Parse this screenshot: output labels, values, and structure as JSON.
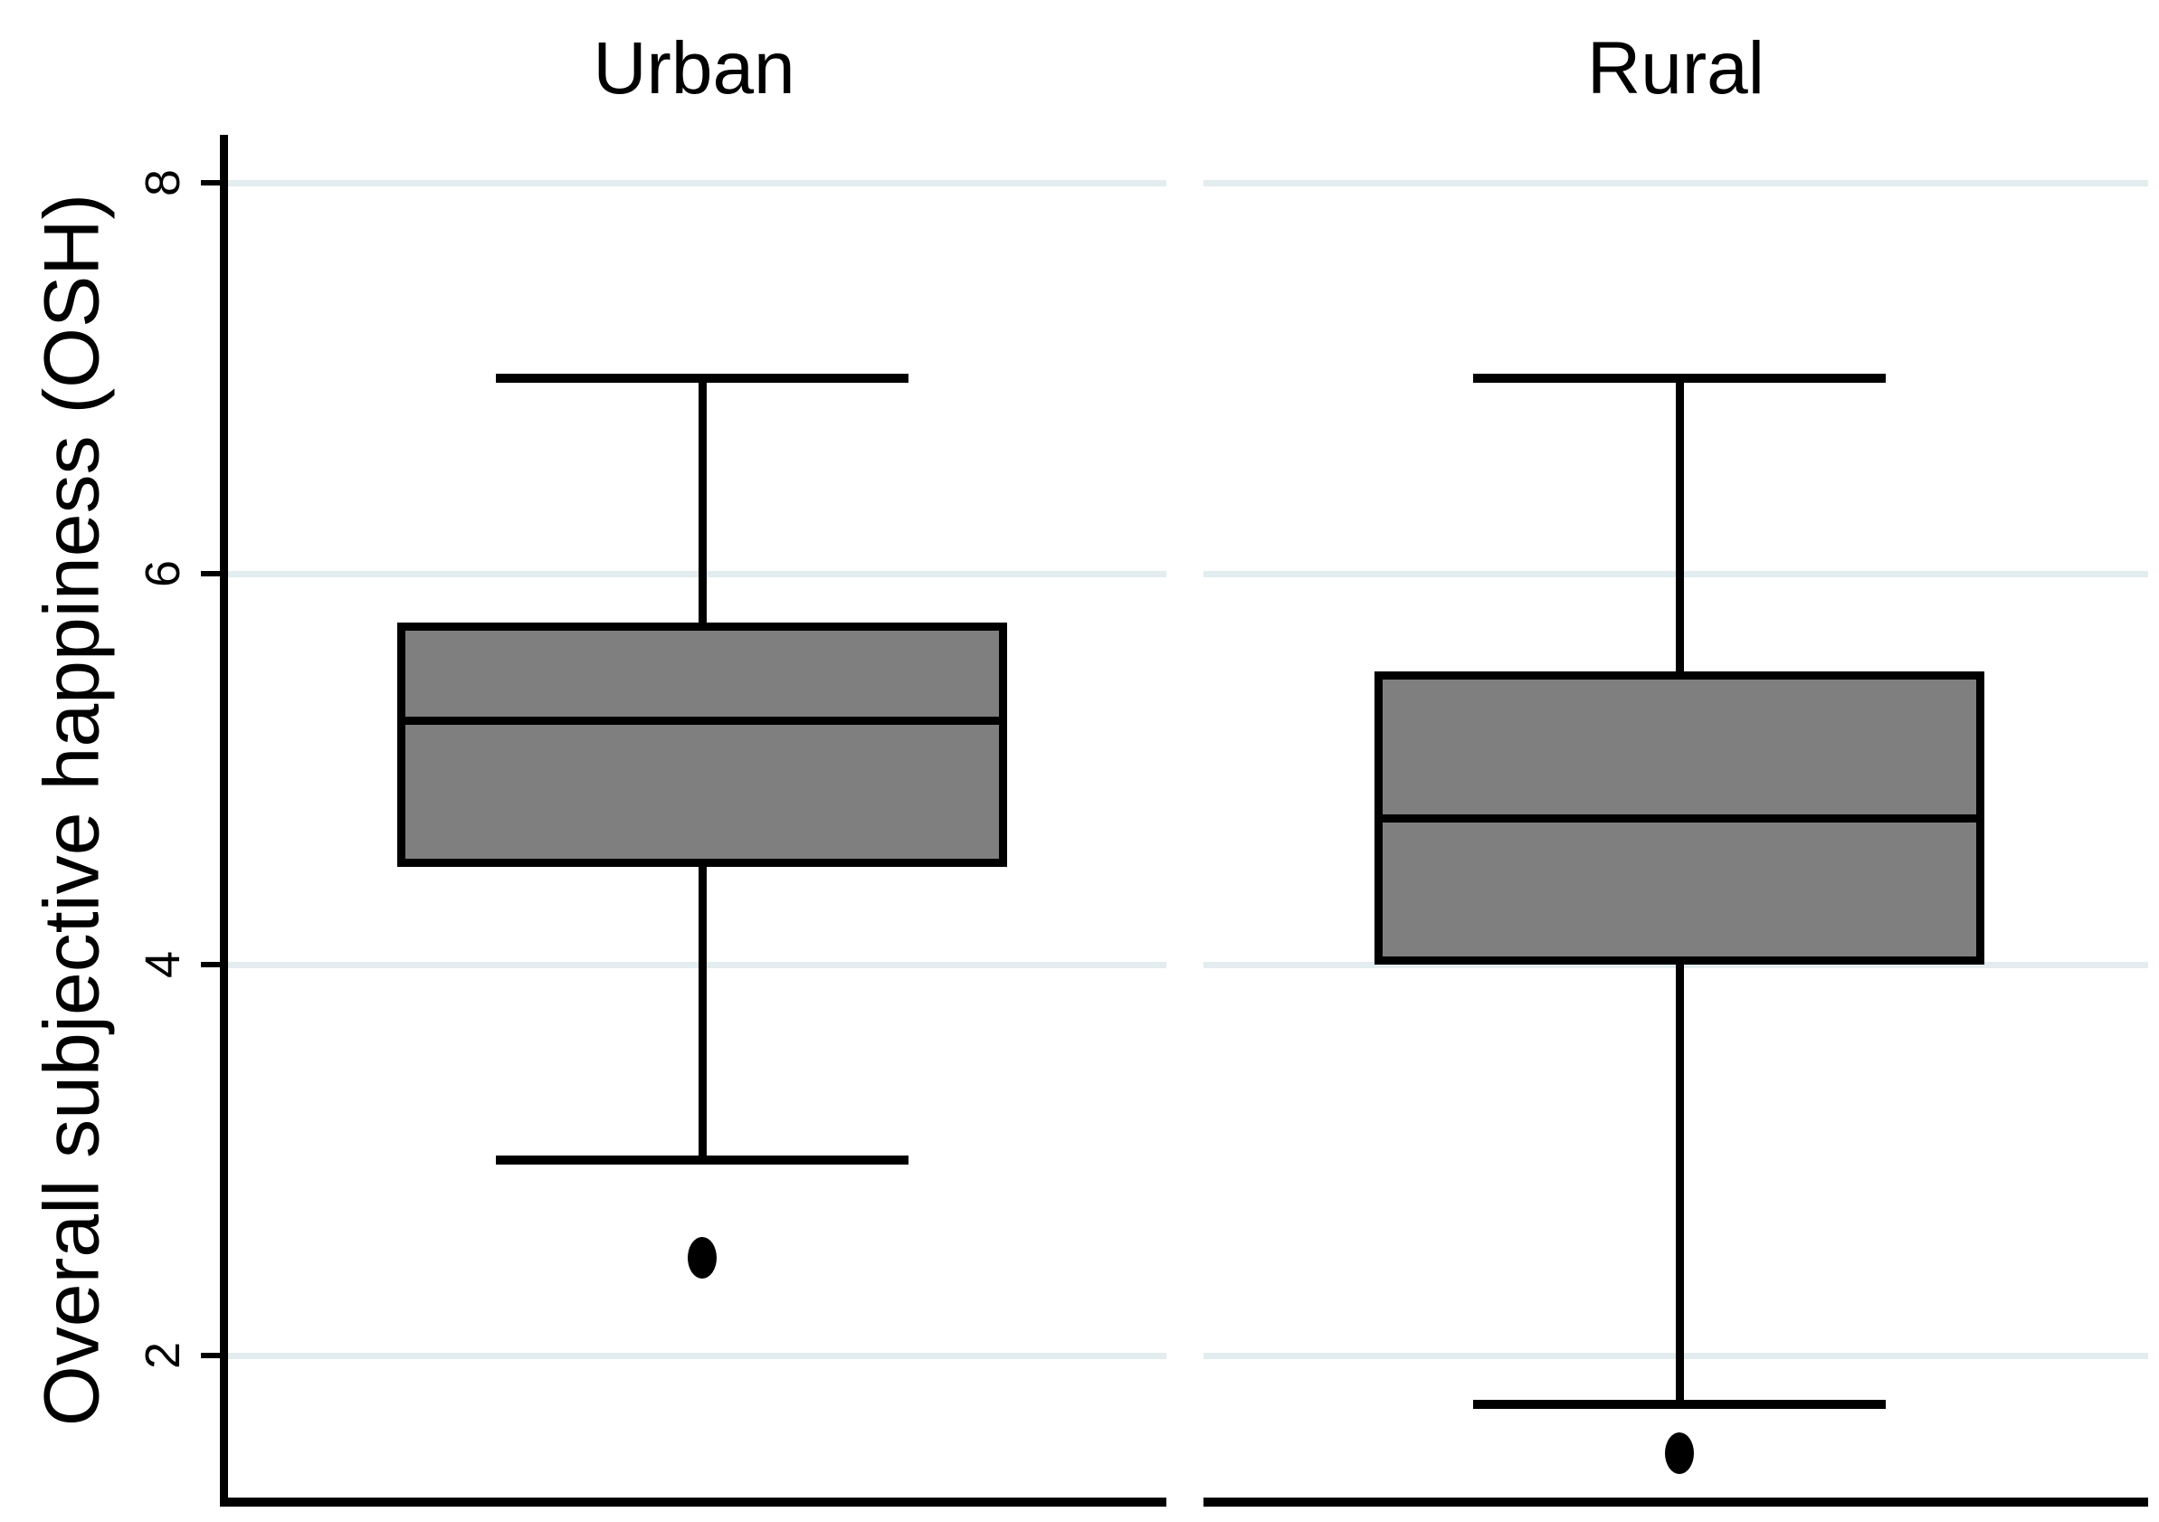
{
  "chart_data": {
    "type": "box",
    "orientation": "vertical",
    "ylabel": "Overall subjective happiness (OSH)",
    "yticks": [
      2,
      4,
      6,
      8
    ],
    "ylim": [
      1.25,
      8.25
    ],
    "grid": true,
    "legend": "none",
    "groups": [
      {
        "label": "Urban",
        "whisker_low": 3.0,
        "q1": 4.5,
        "median": 5.25,
        "q3": 5.75,
        "whisker_high": 7.0,
        "outliers": [
          2.5
        ]
      },
      {
        "label": "Rural",
        "whisker_low": 1.75,
        "q1": 4.0,
        "median": 4.75,
        "q3": 5.5,
        "whisker_high": 7.0,
        "outliers": [
          1.5
        ]
      }
    ],
    "colors": {
      "box_fill": "#7f7f7f",
      "box_border": "#000000",
      "gridline": "#e3ecef",
      "axis": "#000000",
      "background": "#ffffff",
      "text": "#000000"
    }
  }
}
